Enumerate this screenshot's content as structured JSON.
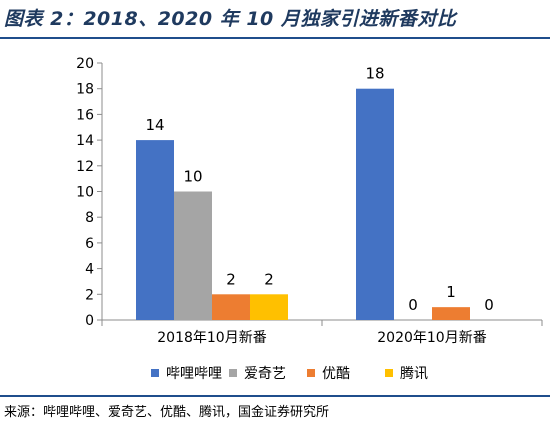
{
  "header": {
    "title": "图表 2：2018、2020 年 10 月独家引进新番对比"
  },
  "footer": {
    "source": "来源：哔哩哔哩、爱奇艺、优酷、腾讯，国金证券研究所"
  },
  "chart_data": {
    "type": "bar",
    "title": "",
    "xlabel": "",
    "ylabel": "",
    "ylim": [
      0,
      20
    ],
    "yticks": [
      "0",
      "2",
      "4",
      "6",
      "8",
      "10",
      "12",
      "14",
      "16",
      "18",
      "20"
    ],
    "categories": [
      "2018年10月新番",
      "2020年10月新番"
    ],
    "series": [
      {
        "name": "哔哩哔哩",
        "values": [
          14,
          18
        ],
        "labels": [
          "14",
          "18"
        ],
        "color": "#4472c4"
      },
      {
        "name": "爱奇艺",
        "values": [
          10,
          0
        ],
        "labels": [
          "10",
          "0"
        ],
        "color": "#a5a5a5"
      },
      {
        "name": "优酷",
        "values": [
          2,
          1
        ],
        "labels": [
          "2",
          "1"
        ],
        "color": "#ed7d31"
      },
      {
        "name": "腾讯",
        "values": [
          2,
          0
        ],
        "labels": [
          "2",
          "0"
        ],
        "color": "#ffc000"
      }
    ],
    "grid": false,
    "legend_position": "bottom"
  }
}
